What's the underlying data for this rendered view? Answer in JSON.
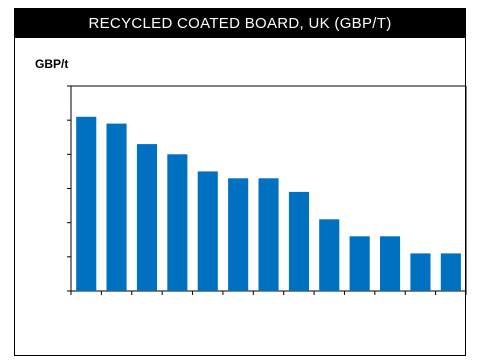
{
  "title": "RECYCLED COATED BOARD, UK (GBP/T)",
  "colors": {
    "bar": "#0070c0",
    "title_bg": "#000000",
    "title_fg": "#ffffff"
  },
  "chart_data": {
    "type": "bar",
    "title": "RECYCLED COATED BOARD, UK (GBP/T)",
    "ylabel": "GBP/t",
    "xlabel": "",
    "categories": [
      "",
      "",
      "",
      "",
      "",
      "",
      "",
      "",
      "",
      "",
      "",
      "",
      ""
    ],
    "values": [
      5.1,
      4.9,
      4.3,
      4.0,
      3.5,
      3.3,
      3.3,
      2.9,
      2.1,
      1.6,
      1.6,
      1.1,
      1.1
    ],
    "ylim": [
      0,
      6
    ],
    "grid": false,
    "legend": "none"
  }
}
